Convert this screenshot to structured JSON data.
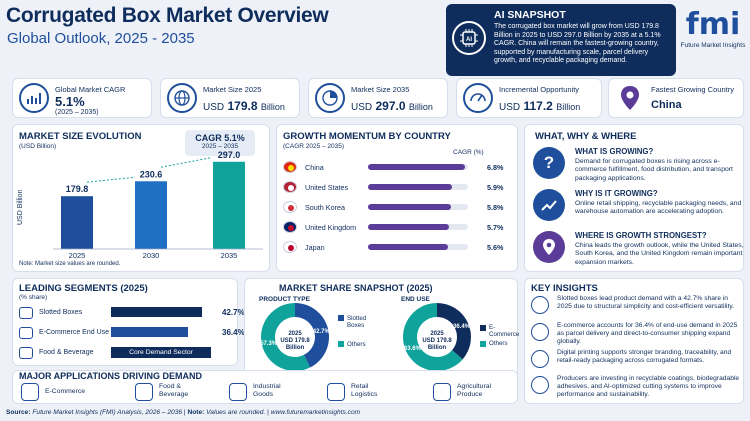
{
  "header": {
    "title": "Corrugated Box Market Overview",
    "subtitle": "Global Outlook, 2025 - 2035"
  },
  "snapshot": {
    "heading": "AI SNAPSHOT",
    "icon": "ai-chip-icon",
    "text": "The corrugated box market will grow from USD 179.8 Billion in 2025 to USD 297.0 Billion by 2035 at a 5.1% CAGR. China will remain the fastest-growing country, supported by manufacturing scale, parcel delivery growth, and recyclable packaging demand."
  },
  "logo": {
    "mark": "fmi",
    "name": "Future Market Insights"
  },
  "kpis": [
    {
      "label": "Global Market CAGR",
      "value": "5.1%",
      "sub": "(2025 – 2035)",
      "icon": "growth-chart-icon"
    },
    {
      "label": "Market Size 2025",
      "value_prefix": "USD",
      "value": "179.8",
      "value_suffix": "Billion",
      "icon": "globe-icon"
    },
    {
      "label": "Market Size 2035",
      "value_prefix": "USD",
      "value": "297.0",
      "value_suffix": "Billion",
      "icon": "pie-icon"
    },
    {
      "label": "Incremental Opportunity",
      "value_prefix": "USD",
      "value": "117.2",
      "value_suffix": "Billion",
      "icon": "gauge-icon"
    },
    {
      "label": "Fastest Growing Country",
      "value": "China",
      "icon": "location-icon"
    }
  ],
  "msize": {
    "heading": "MARKET SIZE EVOLUTION",
    "unit": "(USD Billion)",
    "cagr_label": "CAGR",
    "cagr_value": "5.1%",
    "cagr_period": "2025 – 2035",
    "ylabel": "USD Billion",
    "note": "Note: Market size values are rounded."
  },
  "gm": {
    "heading": "GROWTH MOMENTUM BY COUNTRY",
    "sub": "(CAGR 2025 – 2035)",
    "col": "CAGR (%)",
    "rows": [
      {
        "country": "China",
        "value": 6.8,
        "label": "6.8%"
      },
      {
        "country": "United States",
        "value": 5.9,
        "label": "5.9%"
      },
      {
        "country": "South Korea",
        "value": 5.8,
        "label": "5.8%"
      },
      {
        "country": "United Kingdom",
        "value": 5.7,
        "label": "5.7%"
      },
      {
        "country": "Japan",
        "value": 5.6,
        "label": "5.6%"
      }
    ]
  },
  "www": {
    "heading": "WHAT, WHY & WHERE",
    "items": [
      {
        "q": "WHAT IS GROWING?",
        "a": "Demand for corrugated boxes is rising across e-commerce fulfillment, food distribution, and transport packaging applications."
      },
      {
        "q": "WHY IS IT GROWING?",
        "a": "Online retail shipping, recyclable packaging needs, and warehouse automation are accelerating adoption."
      },
      {
        "q": "WHERE IS GROWTH STRONGEST?",
        "a": "China leads the growth outlook, while the United States, South Korea, and the United Kingdom remain important expansion markets."
      }
    ]
  },
  "ls": {
    "heading": "LEADING SEGMENTS (2025)",
    "sub": "(% share)",
    "rows": [
      {
        "name": "Slotted Boxes",
        "value": 42.7,
        "label": "42.7%"
      },
      {
        "name": "E-Commerce End Use",
        "value": 36.4,
        "label": "36.4%"
      },
      {
        "name": "Food & Beverage",
        "tag": "Core Demand Sector"
      }
    ]
  },
  "ms": {
    "heading": "MARKET SHARE SNAPSHOT (2025)",
    "pt": {
      "title": "PRODUCT TYPE",
      "center1": "2025",
      "center2": "USD 179.8",
      "center3": "Billion",
      "legend": [
        "Slotted Boxes",
        "Others"
      ]
    },
    "eu": {
      "title": "END USE",
      "center1": "2025",
      "center2": "USD 179.8",
      "center3": "Billion",
      "legend": [
        "E-Commerce",
        "Others"
      ]
    }
  },
  "ki": {
    "heading": "KEY INSIGHTS",
    "items": [
      "Slotted boxes lead product demand with a 42.7% share in 2025 due to structural simplicity and cost-efficient versatility.",
      "E-commerce accounts for 36.4% of end-use demand in 2025 as parcel delivery and direct-to-consumer shipping expand globally.",
      "Digital printing supports stronger branding, traceability, and retail-ready packaging across corrugated formats.",
      "Producers are investing in recyclable coatings, biodegradable adhesives, and AI-optimized cutting systems to improve performance and sustainability."
    ]
  },
  "apps": {
    "heading": "MAJOR APPLICATIONS DRIVING DEMAND",
    "items": [
      {
        "name": "E-Commerce",
        "icon": "cart-icon"
      },
      {
        "name": "Food & Beverage",
        "icon": "food-icon"
      },
      {
        "name": "Industrial Goods",
        "icon": "factory-icon"
      },
      {
        "name": "Retail Logistics",
        "icon": "truck-icon"
      },
      {
        "name": "Agricultural Produce",
        "icon": "leaf-icon"
      }
    ]
  },
  "footer": {
    "source_label": "Source:",
    "source": "Future Market Insights (FMI) Analysis, 2026 – 2036",
    "note_label": "Note:",
    "note": "Values are rounded.",
    "url": "www.futuremarketinsights.com"
  },
  "colors": {
    "navy": "#0f2d5c",
    "blue": "#1f4f9c",
    "purple": "#5b3c99"
  },
  "chart_data": [
    {
      "type": "bar",
      "title": "MARKET SIZE EVOLUTION",
      "ylabel": "USD Billion",
      "categories": [
        "2025",
        "2030",
        "2035"
      ],
      "values": [
        179.8,
        230.6,
        297.0
      ],
      "ylim": [
        0,
        320
      ]
    },
    {
      "type": "bar",
      "title": "GROWTH MOMENTUM BY COUNTRY",
      "categories": [
        "China",
        "United States",
        "South Korea",
        "United Kingdom",
        "Japan"
      ],
      "values": [
        6.8,
        5.9,
        5.8,
        5.7,
        5.6
      ]
    },
    {
      "type": "pie",
      "title": "PRODUCT TYPE",
      "categories": [
        "Slotted Boxes",
        "Others"
      ],
      "values": [
        42.7,
        57.3
      ]
    },
    {
      "type": "pie",
      "title": "END USE",
      "categories": [
        "E-Commerce",
        "Others"
      ],
      "values": [
        36.4,
        63.6
      ]
    }
  ]
}
